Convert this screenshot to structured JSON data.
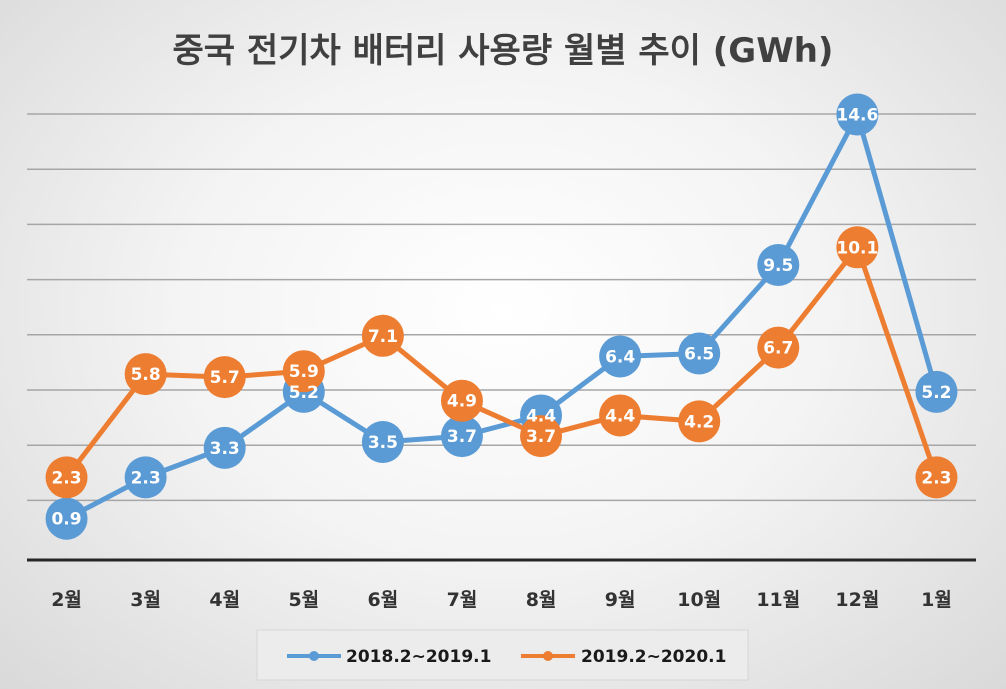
{
  "chart_data": {
    "type": "line",
    "title": "중국 전기차 배터리 사용량 월별 추이 (GWh)",
    "categories": [
      "2월",
      "3월",
      "4월",
      "5월",
      "6월",
      "7월",
      "8월",
      "9월",
      "10월",
      "11월",
      "12월",
      "1월"
    ],
    "series": [
      {
        "name": "2018.2~2019.1",
        "color": "#5b9bd5",
        "values": [
          0.9,
          2.3,
          3.3,
          5.2,
          3.5,
          3.7,
          4.4,
          6.4,
          6.5,
          9.5,
          14.6,
          5.2
        ]
      },
      {
        "name": "2019.2~2020.1",
        "color": "#ed7d31",
        "values": [
          2.3,
          5.8,
          5.7,
          5.9,
          7.1,
          4.9,
          3.7,
          4.4,
          4.2,
          6.7,
          10.1,
          2.3
        ]
      }
    ],
    "ylim": [
      -0.5,
      15.5
    ],
    "grid": true,
    "y_tick_labels_shown": false,
    "legend_position": "bottom"
  }
}
